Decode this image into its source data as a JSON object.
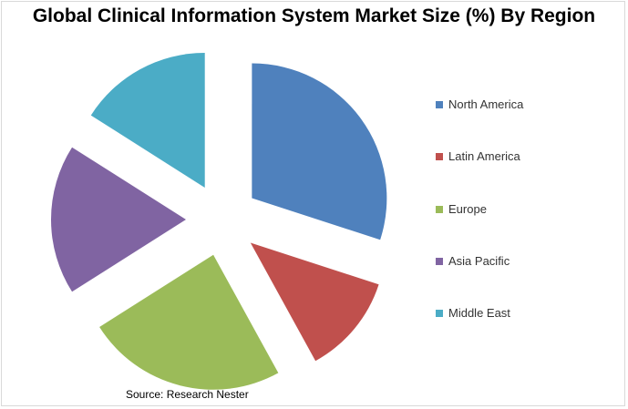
{
  "chart_data": {
    "type": "pie",
    "title": "Global Clinical Information System Market Size (%) By Region",
    "exploded": true,
    "legend_position": "right",
    "slices": [
      {
        "label": "North America",
        "value": 30,
        "color": "#4F81BD"
      },
      {
        "label": "Latin America",
        "value": 12,
        "color": "#C0504D"
      },
      {
        "label": "Europe",
        "value": 24,
        "color": "#9BBB59"
      },
      {
        "label": "Asia Pacific",
        "value": 18,
        "color": "#8064A2"
      },
      {
        "label": "Middle East",
        "value": 16,
        "color": "#4BACC6"
      }
    ]
  },
  "source_note": "Source: Research Nester"
}
